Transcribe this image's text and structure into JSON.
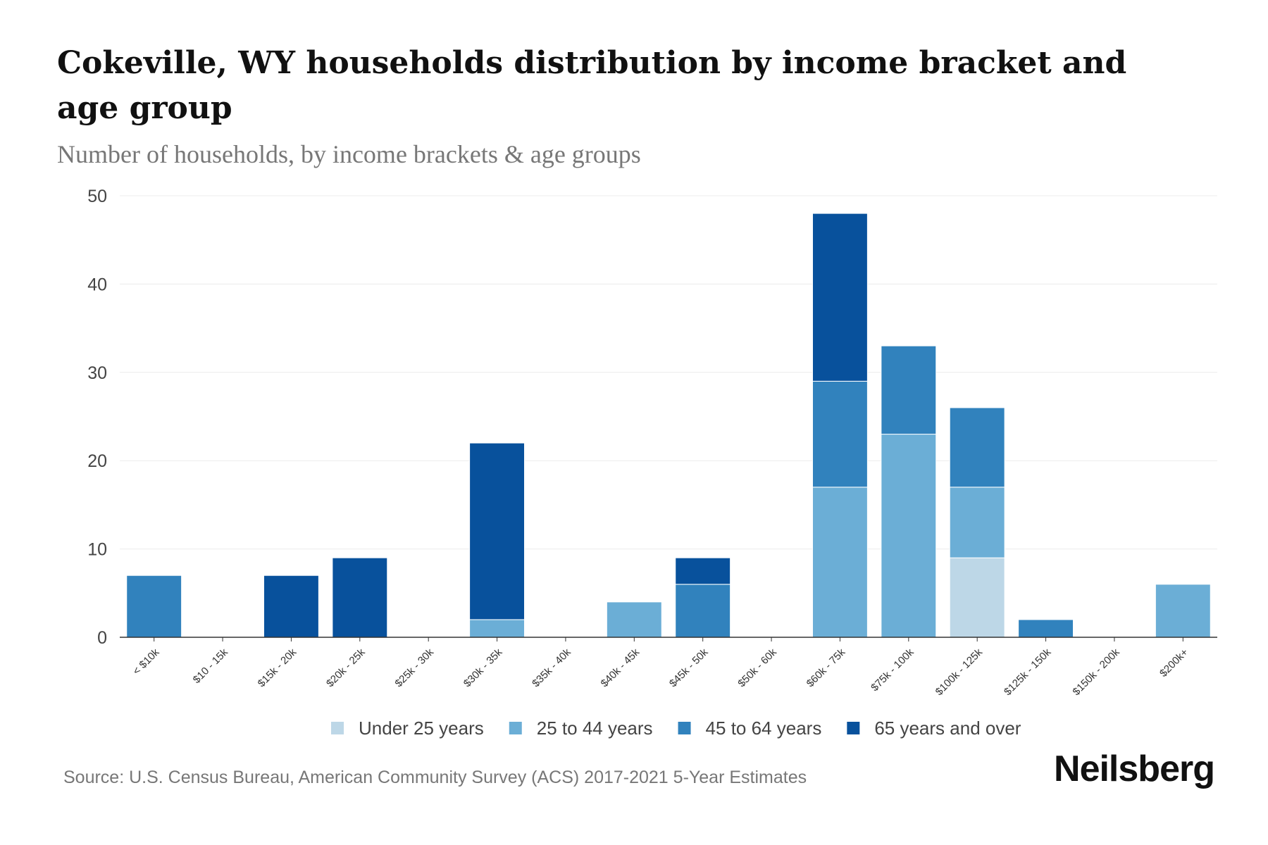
{
  "title": "Cokeville, WY households distribution by income bracket and age group",
  "subtitle": "Number of households, by income brackets & age groups",
  "source": "Source: U.S. Census Bureau, American Community Survey (ACS) 2017-2021 5-Year Estimates",
  "logo": "Neilsberg",
  "chart_data": {
    "type": "bar",
    "stacked": true,
    "title": "Cokeville, WY households distribution by income bracket and age group",
    "xlabel": "",
    "ylabel": "Number of households",
    "ylim": [
      0,
      50
    ],
    "yticks": [
      0,
      10,
      20,
      30,
      40,
      50
    ],
    "grid": true,
    "legend_position": "bottom",
    "categories": [
      "< $10k",
      "$10 - 15k",
      "$15k - 20k",
      "$20k - 25k",
      "$25k - 30k",
      "$30k - 35k",
      "$35k - 40k",
      "$40k - 45k",
      "$45k - 50k",
      "$50k - 60k",
      "$60k - 75k",
      "$75k - 100k",
      "$100k - 125k",
      "$125k - 150k",
      "$150k - 200k",
      "$200k+"
    ],
    "series": [
      {
        "name": "Under 25 years",
        "color": "#bdd7e7",
        "values": [
          0,
          0,
          0,
          0,
          0,
          0,
          0,
          0,
          0,
          0,
          0,
          0,
          9,
          0,
          0,
          0
        ]
      },
      {
        "name": "25 to 44 years",
        "color": "#6baed6",
        "values": [
          0,
          0,
          0,
          0,
          0,
          2,
          0,
          4,
          0,
          0,
          17,
          23,
          8,
          0,
          0,
          6
        ]
      },
      {
        "name": "45 to 64 years",
        "color": "#3182bd",
        "values": [
          7,
          0,
          0,
          0,
          0,
          0,
          0,
          0,
          6,
          0,
          12,
          10,
          9,
          2,
          0,
          0
        ]
      },
      {
        "name": "65 years and over",
        "color": "#08519c",
        "values": [
          0,
          0,
          7,
          9,
          0,
          20,
          0,
          0,
          3,
          0,
          19,
          0,
          0,
          0,
          0,
          0
        ]
      }
    ]
  }
}
